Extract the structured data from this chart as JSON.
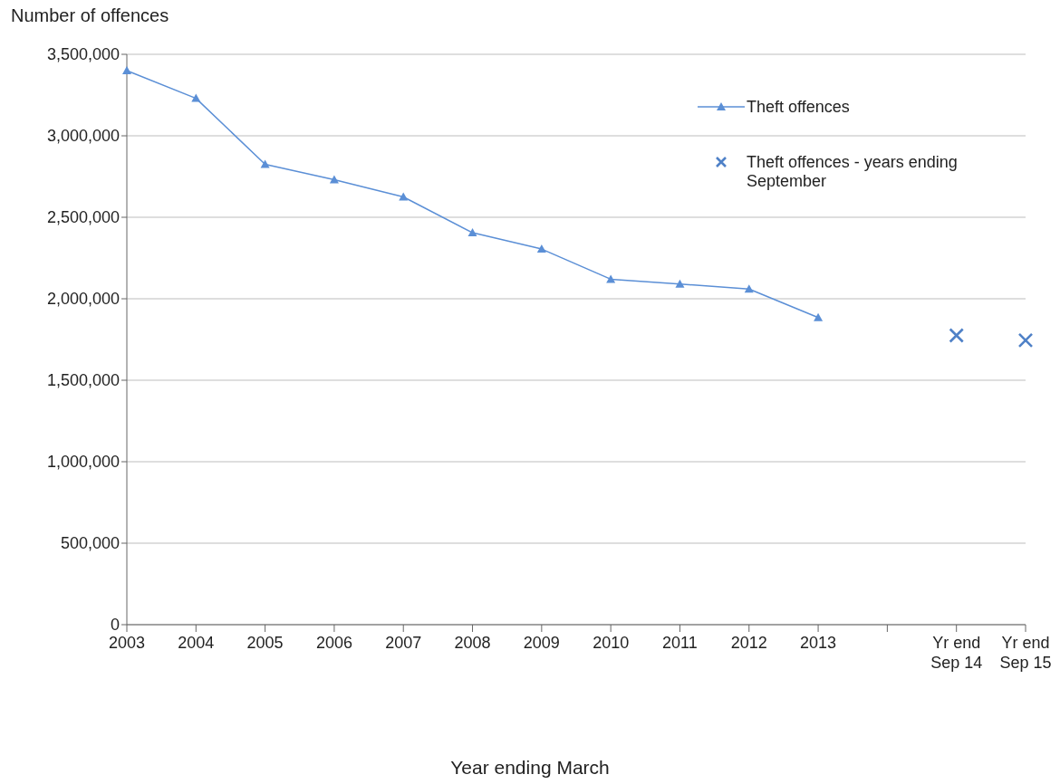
{
  "chart_data": {
    "type": "line",
    "ylabel": "Number of offences",
    "xlabel": "Year ending March",
    "categories": [
      "2003",
      "2004",
      "2005",
      "2006",
      "2007",
      "2008",
      "2009",
      "2010",
      "2011",
      "2012",
      "2013",
      null,
      "Yr end Sep 14",
      "Yr end Sep 15"
    ],
    "series": [
      {
        "name": "Theft offences",
        "marker": "triangle",
        "color": "#5b8fd6",
        "values": [
          3400000,
          3230000,
          2825000,
          2730000,
          2625000,
          2405000,
          2305000,
          2120000,
          2090000,
          2060000,
          1885000,
          null,
          null,
          null
        ]
      },
      {
        "name": "Theft offences - years ending September",
        "type": "scatter",
        "marker": "cross",
        "color": "#4f81c7",
        "values": [
          null,
          null,
          null,
          null,
          null,
          null,
          null,
          null,
          null,
          null,
          null,
          null,
          1775000,
          1745000
        ]
      }
    ],
    "ylim": [
      0,
      3500000
    ],
    "yticks": [
      0,
      {
        "value": 500000,
        "label": "500,000"
      },
      {
        "value": 1000000,
        "label": "1,000,000"
      },
      {
        "value": 1500000,
        "label": "1,500,000"
      },
      {
        "value": 2000000,
        "label": "2,000,000"
      },
      {
        "value": 2500000,
        "label": "2,500,000"
      },
      {
        "value": 3000000,
        "label": "3,000,000"
      },
      {
        "value": 3500000,
        "label": "3,500,000"
      }
    ],
    "grid": "y",
    "legend": "top right"
  }
}
